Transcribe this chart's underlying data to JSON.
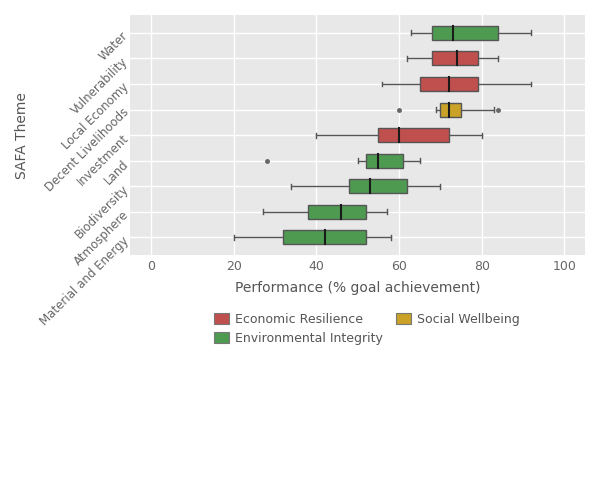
{
  "themes_bottom_to_top": [
    "Material and Energy",
    "Atmosphere",
    "Biodiversity",
    "Land",
    "Investment",
    "Decent Livelihoods",
    "Local Economy",
    "Vulnerability",
    "Water"
  ],
  "boxes": [
    {
      "theme": "Water",
      "category": "Environmental Integrity",
      "whisker_low": 63,
      "q1": 68,
      "median": 73,
      "q3": 84,
      "whisker_high": 92,
      "fliers": []
    },
    {
      "theme": "Vulnerability",
      "category": "Economic Resilience",
      "whisker_low": 62,
      "q1": 68,
      "median": 74,
      "q3": 79,
      "whisker_high": 84,
      "fliers": []
    },
    {
      "theme": "Local Economy",
      "category": "Economic Resilience",
      "whisker_low": 56,
      "q1": 65,
      "median": 72,
      "q3": 79,
      "whisker_high": 92,
      "fliers": []
    },
    {
      "theme": "Decent Livelihoods",
      "category": "Social Wellbeing",
      "whisker_low": 69,
      "q1": 70,
      "median": 72,
      "q3": 75,
      "whisker_high": 83,
      "fliers": [
        60,
        84
      ]
    },
    {
      "theme": "Investment",
      "category": "Economic Resilience",
      "whisker_low": 40,
      "q1": 55,
      "median": 60,
      "q3": 72,
      "whisker_high": 80,
      "fliers": []
    },
    {
      "theme": "Land",
      "category": "Environmental Integrity",
      "whisker_low": 50,
      "q1": 52,
      "median": 55,
      "q3": 61,
      "whisker_high": 65,
      "fliers": [
        28
      ]
    },
    {
      "theme": "Biodiversity",
      "category": "Environmental Integrity",
      "whisker_low": 34,
      "q1": 48,
      "median": 53,
      "q3": 62,
      "whisker_high": 70,
      "fliers": []
    },
    {
      "theme": "Atmosphere",
      "category": "Environmental Integrity",
      "whisker_low": 27,
      "q1": 38,
      "median": 46,
      "q3": 52,
      "whisker_high": 57,
      "fliers": []
    },
    {
      "theme": "Material and Energy",
      "category": "Environmental Integrity",
      "whisker_low": 20,
      "q1": 32,
      "median": 42,
      "q3": 52,
      "whisker_high": 58,
      "fliers": []
    }
  ],
  "colors": {
    "Economic Resilience": "#c0504d",
    "Environmental Integrity": "#4e9a51",
    "Social Wellbeing": "#c9a227"
  },
  "legend_categories": [
    "Economic Resilience",
    "Environmental Integrity",
    "Social Wellbeing"
  ],
  "xlabel": "Performance (% goal achievement)",
  "ylabel": "SAFA Theme",
  "xlim": [
    -5,
    105
  ],
  "xticks": [
    0,
    20,
    40,
    60,
    80,
    100
  ],
  "bg_color": "#e8e8e8",
  "grid_color": "#ffffff",
  "box_width": 0.55,
  "linewidth": 1.0,
  "flier_color": "#666666"
}
